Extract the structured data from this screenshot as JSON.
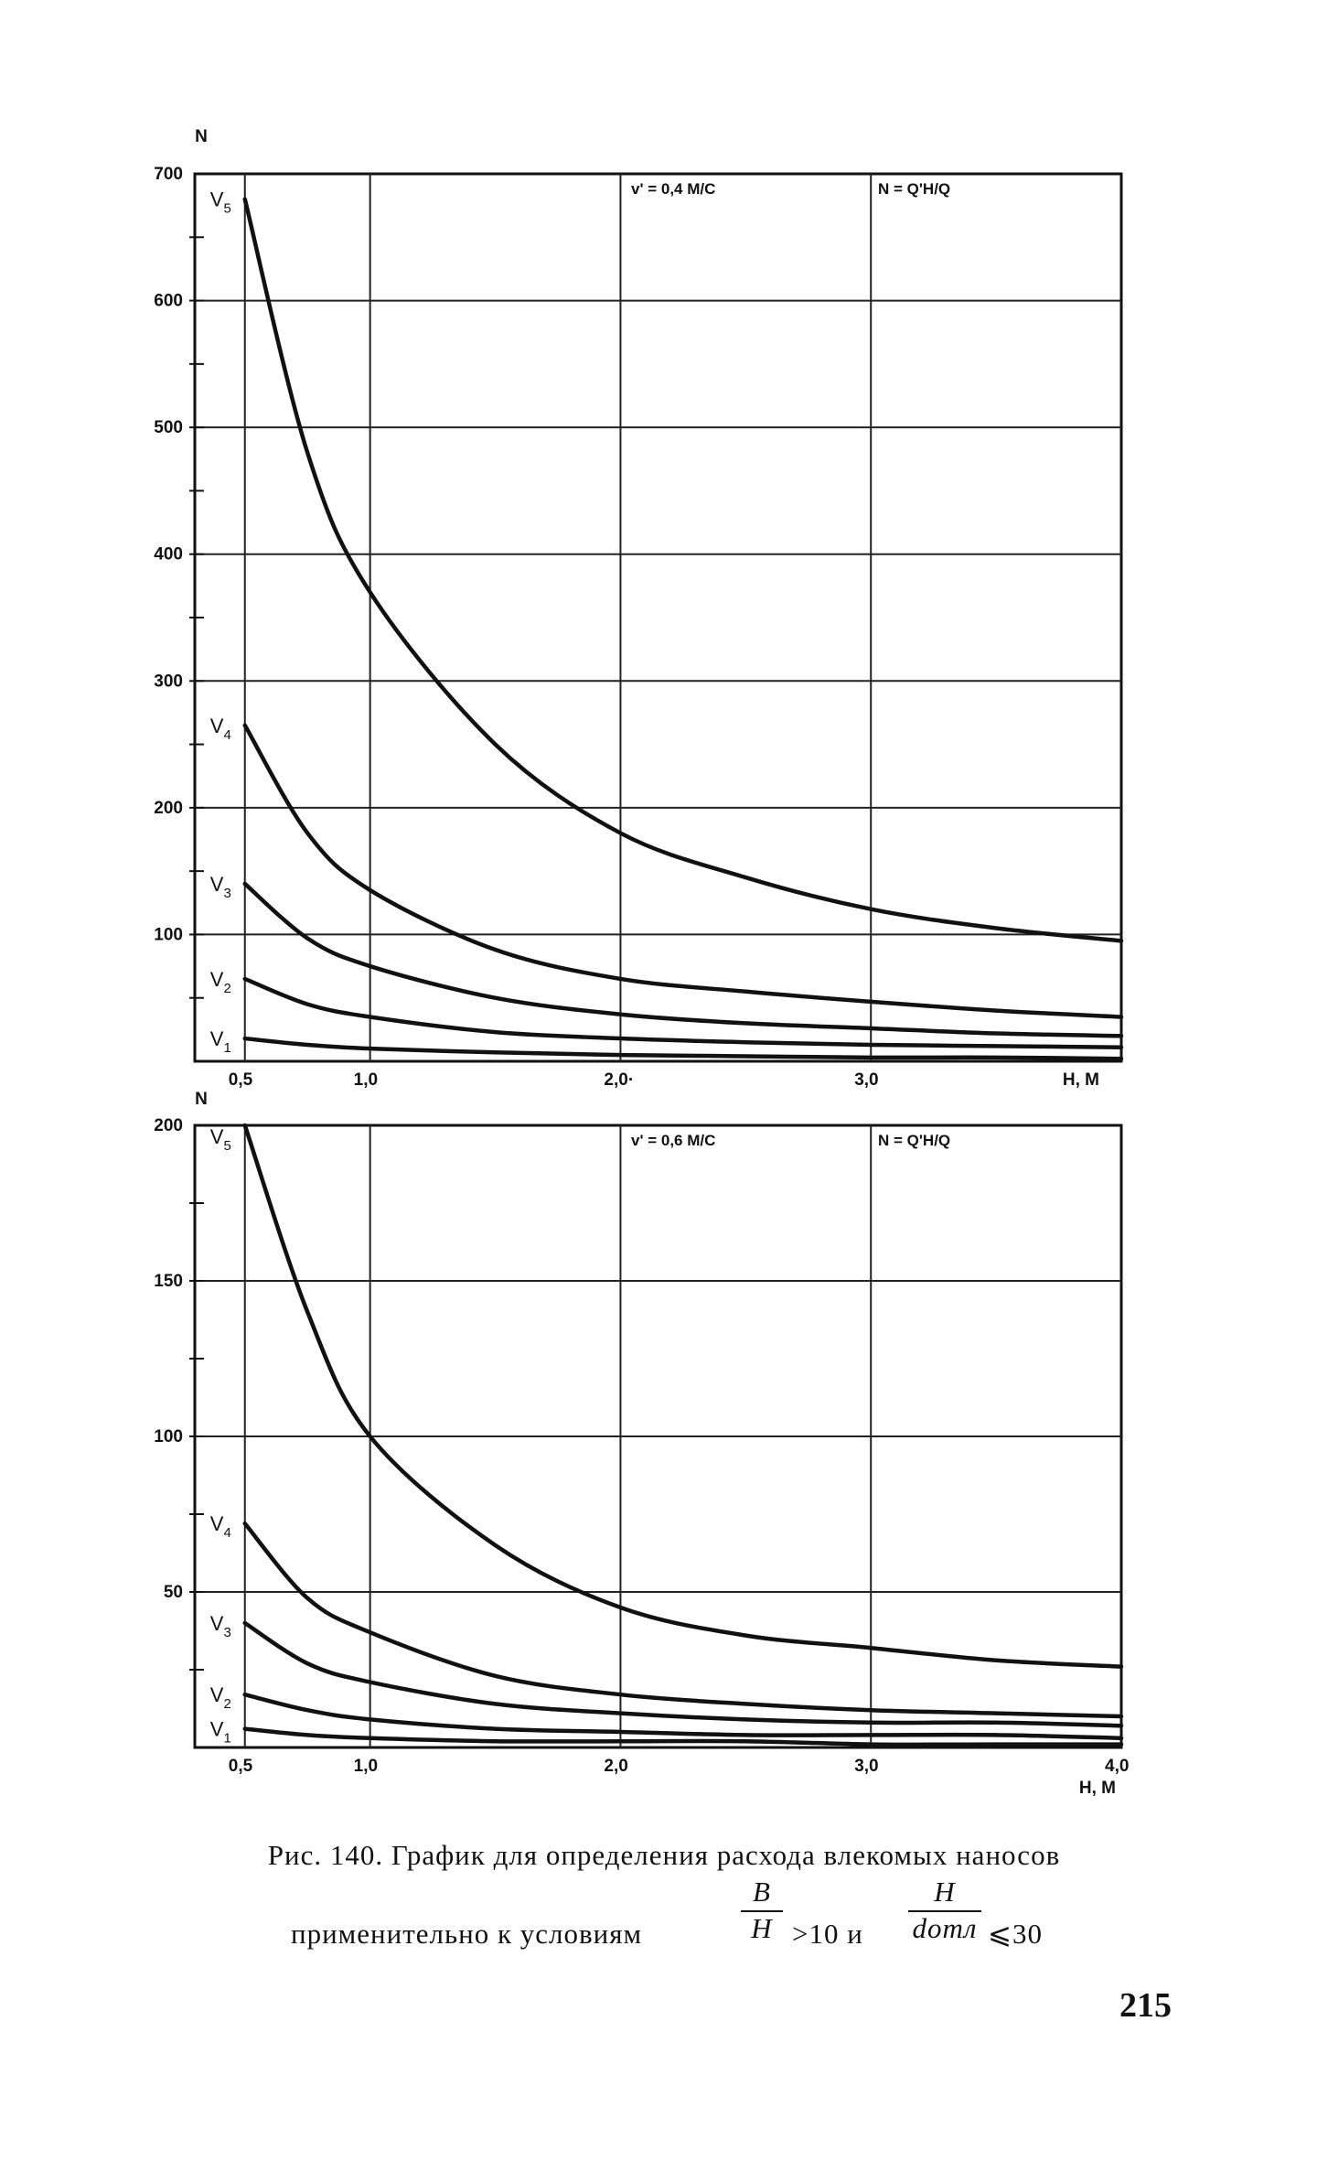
{
  "chart_data": [
    {
      "type": "line",
      "title": "",
      "ylabel": "N",
      "xlabel": "H, M",
      "xlim": [
        0.3,
        4.0
      ],
      "ylim": [
        0,
        700
      ],
      "x_ticks": [
        "0,5",
        "1,0",
        "2,0·",
        "3,0"
      ],
      "x_end_label": "H, M",
      "y_ticks": [
        "700",
        "600",
        "500",
        "400",
        "300",
        "200",
        "100"
      ],
      "annotations": [
        "v' = 0,4 M/C",
        "N = Q'Н/Q"
      ],
      "grid": true,
      "series": [
        {
          "name": "V5",
          "x": [
            0.5,
            0.75,
            1.0,
            1.5,
            2.0,
            2.5,
            3.0,
            3.5,
            4.0
          ],
          "y": [
            680,
            480,
            370,
            250,
            180,
            145,
            120,
            105,
            95
          ]
        },
        {
          "name": "V4",
          "x": [
            0.5,
            0.75,
            1.0,
            1.5,
            2.0,
            2.5,
            3.0,
            3.5,
            4.0
          ],
          "y": [
            265,
            180,
            135,
            88,
            65,
            55,
            47,
            40,
            35
          ]
        },
        {
          "name": "V3",
          "x": [
            0.5,
            0.75,
            1.0,
            1.5,
            2.0,
            2.5,
            3.0,
            3.5,
            4.0
          ],
          "y": [
            140,
            97,
            75,
            50,
            37,
            30,
            26,
            22,
            20
          ]
        },
        {
          "name": "V2",
          "x": [
            0.5,
            0.75,
            1.0,
            1.5,
            2.0,
            2.5,
            3.0,
            3.5,
            4.0
          ],
          "y": [
            65,
            45,
            35,
            23,
            18,
            15,
            13,
            12,
            11
          ]
        },
        {
          "name": "V1",
          "x": [
            0.5,
            0.75,
            1.0,
            1.5,
            2.0,
            2.5,
            3.0,
            3.5,
            4.0
          ],
          "y": [
            18,
            13,
            10,
            7,
            5,
            4,
            3,
            3,
            2
          ]
        }
      ]
    },
    {
      "type": "line",
      "title": "",
      "ylabel": "N",
      "xlabel": "H, M",
      "xlim": [
        0.3,
        4.0
      ],
      "ylim": [
        0,
        200
      ],
      "x_ticks": [
        "0,5",
        "1,0",
        "2,0",
        "3,0",
        "4,0"
      ],
      "x_end_label": "H, M",
      "y_ticks": [
        "200",
        "150",
        "100",
        "50"
      ],
      "annotations": [
        "v' = 0,6 M/C",
        "N = Q'Н/Q"
      ],
      "grid": true,
      "series": [
        {
          "name": "V5",
          "x": [
            0.5,
            0.75,
            1.0,
            1.5,
            2.0,
            2.5,
            3.0,
            3.5,
            4.0
          ],
          "y": [
            200,
            140,
            100,
            65,
            45,
            36,
            32,
            28,
            26
          ]
        },
        {
          "name": "V4",
          "x": [
            0.5,
            0.75,
            1.0,
            1.5,
            2.0,
            2.5,
            3.0,
            3.5,
            4.0
          ],
          "y": [
            72,
            48,
            37,
            23,
            17,
            14,
            12,
            11,
            10
          ]
        },
        {
          "name": "V3",
          "x": [
            0.5,
            0.75,
            1.0,
            1.5,
            2.0,
            2.5,
            3.0,
            3.5,
            4.0
          ],
          "y": [
            40,
            27,
            21,
            14,
            11,
            9,
            8,
            8,
            7
          ]
        },
        {
          "name": "V2",
          "x": [
            0.5,
            0.75,
            1.0,
            1.5,
            2.0,
            2.5,
            3.0,
            3.5,
            4.0
          ],
          "y": [
            17,
            12,
            9,
            6,
            5,
            4,
            4,
            4,
            3
          ]
        },
        {
          "name": "V1",
          "x": [
            0.5,
            0.75,
            1.0,
            1.5,
            2.0,
            2.5,
            3.0,
            3.5,
            4.0
          ],
          "y": [
            6,
            4,
            3,
            2,
            2,
            2,
            1,
            1,
            1
          ]
        }
      ]
    }
  ],
  "caption": {
    "line1": "Рис. 140. График для определения расхода влекомых наносов",
    "line2_text": "применительно к условиям",
    "frac1_num": "B",
    "frac1_den": "H",
    "rel1": ">10 и",
    "frac2_num": "H",
    "frac2_den": "dотл",
    "rel2": "⩽30"
  },
  "page_number": "215"
}
